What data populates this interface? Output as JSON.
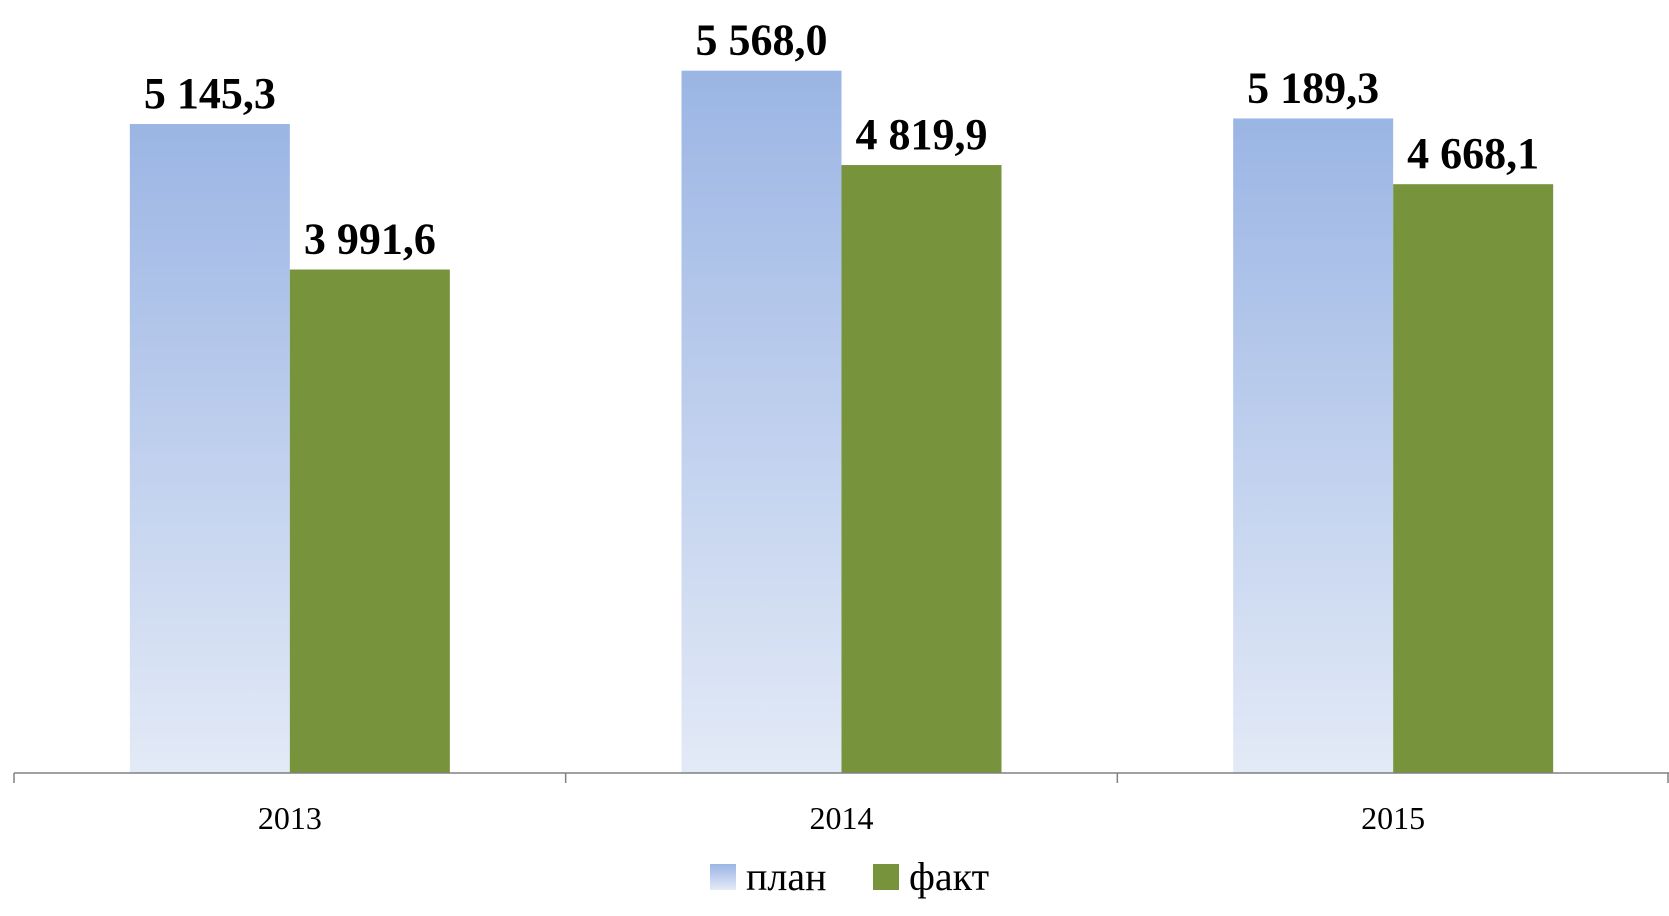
{
  "chart_data": {
    "type": "bar",
    "categories": [
      "2013",
      "2014",
      "2015"
    ],
    "series": [
      {
        "name": "план",
        "values": [
          5145.3,
          5568.0,
          5189.3
        ],
        "labels": [
          "5 145,3",
          "5 568,0",
          "5 189,3"
        ],
        "color_top": "#9bb5e4",
        "color_bottom": "#e3eaf7"
      },
      {
        "name": "факт",
        "values": [
          3991.6,
          4819.9,
          4668.1
        ],
        "labels": [
          "3 991,6",
          "4 819,9",
          "4 668,1"
        ],
        "color": "#77933c"
      }
    ],
    "ylim": [
      0,
      5800
    ],
    "grid": false,
    "legend_position": "bottom-center",
    "axis_color": "#808080"
  }
}
